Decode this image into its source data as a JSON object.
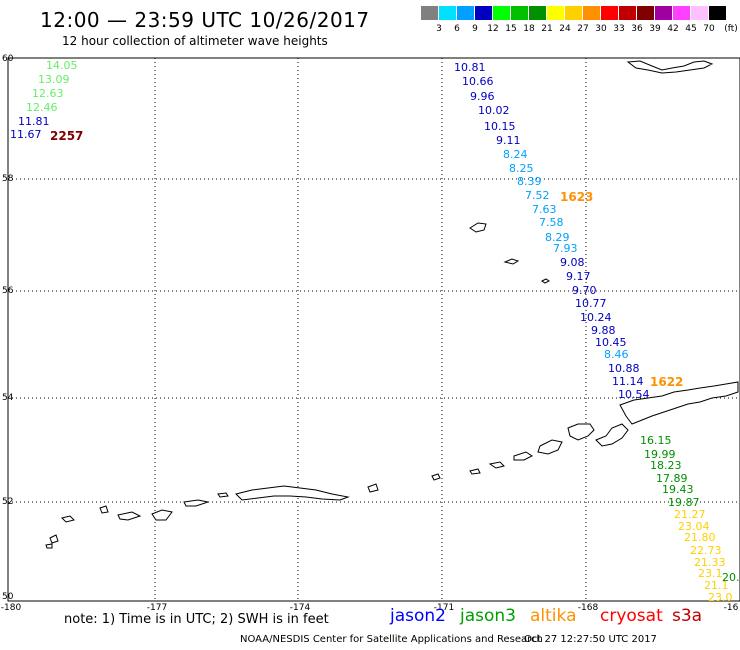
{
  "header": {
    "title": "12:00 — 23:59 UTC 10/26/2017",
    "subtitle": "12 hour collection of altimeter wave heights"
  },
  "legend": {
    "unit": "(ft)",
    "bins": [
      {
        "label": "3",
        "color": "#808080"
      },
      {
        "label": "6",
        "color": "#00e0ff"
      },
      {
        "label": "9",
        "color": "#00a0ff"
      },
      {
        "label": "12",
        "color": "#0000c0"
      },
      {
        "label": "15",
        "color": "#00ff00"
      },
      {
        "label": "18",
        "color": "#00c000"
      },
      {
        "label": "21",
        "color": "#009000"
      },
      {
        "label": "24",
        "color": "#ffff00"
      },
      {
        "label": "27",
        "color": "#ffd000"
      },
      {
        "label": "30",
        "color": "#ff9000"
      },
      {
        "label": "33",
        "color": "#ff0000"
      },
      {
        "label": "36",
        "color": "#c00000"
      },
      {
        "label": "39",
        "color": "#800000"
      },
      {
        "label": "42",
        "color": "#a000a0"
      },
      {
        "label": "45",
        "color": "#ff40ff"
      },
      {
        "label": "70",
        "color": "#ffc0ff"
      },
      {
        "label": "",
        "color": "#000000"
      }
    ]
  },
  "map": {
    "lon_labels": [
      "-180",
      "-177",
      "-174",
      "-171",
      "-168",
      "-16"
    ],
    "lat_labels": [
      "60",
      "58",
      "56",
      "54",
      "52",
      "50"
    ],
    "tracks": [
      {
        "color": "#66ee66",
        "text": "14.05"
      },
      {
        "color": "#66ee66",
        "text": "13.09"
      },
      {
        "color": "#66ee66",
        "text": "12.63"
      },
      {
        "color": "#66ee66",
        "text": "12.46"
      },
      {
        "color": "#0000c0",
        "text": "11.81"
      },
      {
        "color": "#0000c0",
        "text": "11.67"
      },
      {
        "color": "#0000c0",
        "text": "10.81"
      },
      {
        "color": "#0000c0",
        "text": "10.66"
      },
      {
        "color": "#0000c0",
        "text": "9.96"
      },
      {
        "color": "#0000c0",
        "text": "10.02"
      },
      {
        "color": "#0000c0",
        "text": "10.15"
      },
      {
        "color": "#0000c0",
        "text": "9.11"
      },
      {
        "color": "#00a0ff",
        "text": "8.24"
      },
      {
        "color": "#00a0ff",
        "text": "8.25"
      },
      {
        "color": "#00a0ff",
        "text": "8.39"
      },
      {
        "color": "#00a0ff",
        "text": "7.52"
      },
      {
        "color": "#00a0ff",
        "text": "7.63"
      },
      {
        "color": "#00a0ff",
        "text": "7.58"
      },
      {
        "color": "#00a0ff",
        "text": "8.29"
      },
      {
        "color": "#00a0ff",
        "text": "7.93"
      },
      {
        "color": "#0000c0",
        "text": "9.08"
      },
      {
        "color": "#0000c0",
        "text": "9.17"
      },
      {
        "color": "#0000c0",
        "text": "9.70"
      },
      {
        "color": "#0000c0",
        "text": "10.77"
      },
      {
        "color": "#0000c0",
        "text": "10.24"
      },
      {
        "color": "#0000c0",
        "text": "9.88"
      },
      {
        "color": "#0000c0",
        "text": "10.45"
      },
      {
        "color": "#00a0ff",
        "text": "8.46"
      },
      {
        "color": "#0000c0",
        "text": "10.88"
      },
      {
        "color": "#0000c0",
        "text": "11.14"
      },
      {
        "color": "#0000c0",
        "text": "10.54"
      },
      {
        "color": "#009000",
        "text": "16.15"
      },
      {
        "color": "#009000",
        "text": "19.99"
      },
      {
        "color": "#009000",
        "text": "18.23"
      },
      {
        "color": "#009000",
        "text": "17.89"
      },
      {
        "color": "#009000",
        "text": "19.43"
      },
      {
        "color": "#009000",
        "text": "19.87"
      },
      {
        "color": "#ffd000",
        "text": "21.27"
      },
      {
        "color": "#ffd000",
        "text": "23.04"
      },
      {
        "color": "#ffd000",
        "text": "21.80"
      },
      {
        "color": "#ffd000",
        "text": "22.73"
      },
      {
        "color": "#ffd000",
        "text": "21.33"
      },
      {
        "color": "#ffd000",
        "text": "23.1"
      },
      {
        "color": "#ffd000",
        "text": "21.1"
      },
      {
        "color": "#ffd000",
        "text": "23.0"
      },
      {
        "color": "#009000",
        "text": "20."
      }
    ],
    "times": [
      {
        "text": "2257",
        "color": "#800000"
      },
      {
        "text": "1623",
        "color": "#ff9000"
      },
      {
        "text": "1622",
        "color": "#ff9000"
      }
    ]
  },
  "footer": {
    "note": "note:  1) Time is in UTC;  2) SWH is in feet",
    "missions": [
      {
        "name": "jason2",
        "color": "#0000ff"
      },
      {
        "name": "jason3",
        "color": "#00a000"
      },
      {
        "name": "altika",
        "color": "#ff9000"
      },
      {
        "name": "cryosat",
        "color": "#ff0000"
      },
      {
        "name": "s3a",
        "color": "#c00000"
      }
    ],
    "credit": "NOAA/NESDIS Center for Satellite Applications and Research",
    "timestamp": "Oct 27 12:27:50 UTC 2017"
  }
}
